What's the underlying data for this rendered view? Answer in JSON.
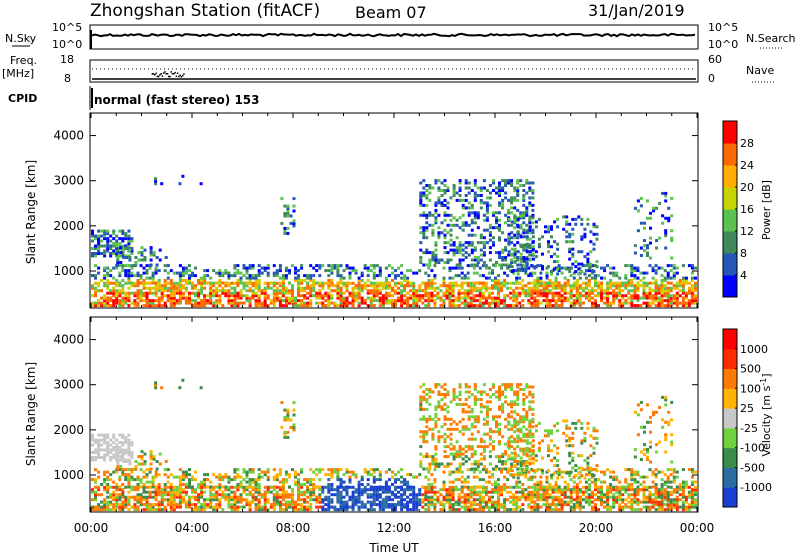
{
  "header": {
    "station": "Zhongshan Station (fitACF)",
    "beam": "Beam 07",
    "date": "31/Jan/2019"
  },
  "top_panels": {
    "nsky_label": "N.Sky",
    "nsky_ticks": [
      "10^5",
      "10^0"
    ],
    "nsearch_label": "N.Search",
    "nsearch_ticks": [
      "10^5",
      "10^0"
    ],
    "freq_label": "Freq.",
    "freq_unit": "[MHz]",
    "freq_ticks": [
      "18",
      "8"
    ],
    "nave_label": "Nave",
    "nave_ticks": [
      "60",
      "0"
    ],
    "cpid_label": "CPID",
    "cpid_text": "normal (fast stereo) 153"
  },
  "colors": {
    "power_scale": [
      "#0000ff",
      "#2456b8",
      "#3f8a5a",
      "#5cc24f",
      "#c8d400",
      "#ffae00",
      "#ff6a00",
      "#ff0000"
    ],
    "velocity_scale": [
      "#1b3fd1",
      "#2c6ea3",
      "#3b8c4a",
      "#6fd13d",
      "#c8c8c8",
      "#ffb300",
      "#ff7a00",
      "#ff2a00",
      "#ff0000"
    ],
    "ground_scatter": "#bdbdbd"
  },
  "chart_data": [
    {
      "type": "heatmap",
      "name_key": "power",
      "ylabel": "Slant Range [km]",
      "xlabel": "Time UT",
      "x_ticks": [
        "00:00",
        "04:00",
        "08:00",
        "12:00",
        "16:00",
        "20:00",
        "00:00"
      ],
      "x_range_hours": [
        0,
        24
      ],
      "y_range_km": [
        180,
        4500
      ],
      "y_ticks": [
        1000,
        2000,
        3000,
        4000
      ],
      "colorbar_label": "Power [dB]",
      "colorbar_ticks": [
        "28",
        "24",
        "20",
        "16",
        "12",
        "8",
        "4"
      ],
      "colorbar_range": [
        0,
        32
      ]
    },
    {
      "type": "heatmap",
      "name_key": "velocity",
      "ylabel": "Slant Range [km]",
      "xlabel": "Time UT",
      "x_ticks": [
        "00:00",
        "04:00",
        "08:00",
        "12:00",
        "16:00",
        "20:00",
        "00:00"
      ],
      "x_range_hours": [
        0,
        24
      ],
      "y_range_km": [
        180,
        4500
      ],
      "y_ticks": [
        1000,
        2000,
        3000,
        4000
      ],
      "colorbar_label": "Velocity [m s",
      "colorbar_label_sup": "-1",
      "colorbar_ticks": [
        "1000",
        "500",
        "100",
        "25",
        "-25",
        "-100",
        "-500",
        "-1000"
      ]
    }
  ]
}
